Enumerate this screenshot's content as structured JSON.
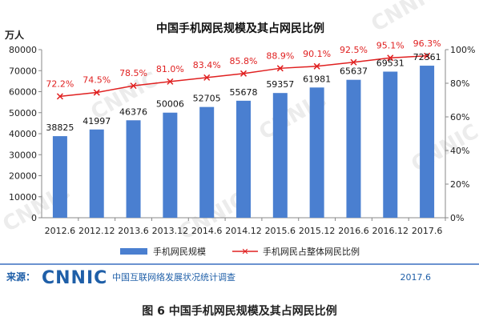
{
  "chart_data": {
    "type": "bar",
    "title": "中国手机网民规模及其占网民比例",
    "ylabel_left": "万人",
    "categories": [
      "2012.6",
      "2012.12",
      "2013.6",
      "2013.12",
      "2014.6",
      "2014.12",
      "2015.6",
      "2015.12",
      "2016.6",
      "2016.12",
      "2017.6"
    ],
    "series": [
      {
        "name": "手机网民规模",
        "type": "bar",
        "color": "#4a7fd0",
        "values": [
          38825,
          41997,
          46376,
          50006,
          52705,
          55678,
          59357,
          61981,
          65637,
          69531,
          72361
        ]
      },
      {
        "name": "手机网民占整体网民比例",
        "type": "line",
        "color": "#e02020",
        "values": [
          72.2,
          74.5,
          78.5,
          81.0,
          83.4,
          85.8,
          88.9,
          90.1,
          92.5,
          95.1,
          96.3
        ],
        "labels": [
          "72.2%",
          "74.5%",
          "78.5%",
          "81.0%",
          "83.4%",
          "85.8%",
          "88.9%",
          "90.1%",
          "92.5%",
          "95.1%",
          "96.3%"
        ]
      }
    ],
    "ylim_left": [
      0,
      80000
    ],
    "yticks_left": [
      "0",
      "10000",
      "20000",
      "30000",
      "40000",
      "50000",
      "60000",
      "70000",
      "80000"
    ],
    "ylim_right": [
      0,
      100
    ],
    "yticks_right": [
      "0%",
      "20%",
      "40%",
      "60%",
      "80%",
      "100%"
    ],
    "grid": false,
    "legend_position": "bottom"
  },
  "source": {
    "label": "来源：",
    "logo_text": "CNNIC",
    "org_text": "中国互联网络发展状况统计调查",
    "date": "2017.6"
  },
  "caption": "图 6    中国手机网民规模及其占网民比例",
  "watermark": "CNNIC",
  "colors": {
    "bar": "#4a7fd0",
    "line": "#e02020",
    "brand": "#1f5fa8"
  }
}
